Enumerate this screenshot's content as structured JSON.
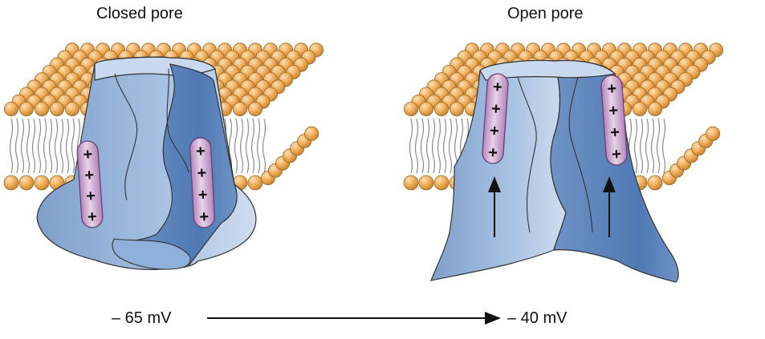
{
  "panels": {
    "closed": {
      "title": "Closed pore"
    },
    "open": {
      "title": "Open pore"
    }
  },
  "voltage": {
    "from": "– 65 mV",
    "to": "– 40 mV"
  },
  "sensor_symbol": "+",
  "colors": {
    "lipid_head": "#eeaa55",
    "lipid_head_highlight": "#fbe0b4",
    "lipid_tail": "#8a8a8a",
    "protein_light": "#a9c3e3",
    "protein_mid": "#7e9fcb",
    "protein_dark": "#4f79b4",
    "protein_top": "#c8d8ee",
    "sensor_fill": "#c79acb",
    "sensor_stroke": "#6b3f74",
    "arrow": "#111111"
  }
}
